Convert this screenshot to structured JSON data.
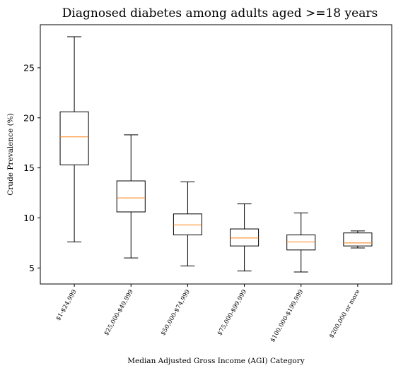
{
  "chart_data": {
    "type": "box",
    "title": "Diagnosed diabetes among adults aged >=18 years",
    "xlabel": "Median Adjusted Gross Income (AGI) Category",
    "ylabel": "Crude Prevalence (%)",
    "ylim": [
      3.4,
      29.3
    ],
    "yticks": [
      5,
      10,
      15,
      20,
      25
    ],
    "grid": false,
    "colors": {
      "box": "#000000",
      "median": "#ff7f0e"
    },
    "categories": [
      "$1-$24,999",
      "$25,000-$49,999",
      "$50,000-$74,999",
      "$75,000-$99,999",
      "$100,000-$199,999",
      "$200,000 or more"
    ],
    "boxes": [
      {
        "whisker_low": 7.6,
        "q1": 15.3,
        "median": 18.1,
        "q3": 20.6,
        "whisker_high": 28.1
      },
      {
        "whisker_low": 6.0,
        "q1": 10.6,
        "median": 12.0,
        "q3": 13.7,
        "whisker_high": 18.3
      },
      {
        "whisker_low": 5.2,
        "q1": 8.3,
        "median": 9.3,
        "q3": 10.4,
        "whisker_high": 13.6
      },
      {
        "whisker_low": 4.7,
        "q1": 7.2,
        "median": 8.0,
        "q3": 8.9,
        "whisker_high": 11.4
      },
      {
        "whisker_low": 4.6,
        "q1": 6.8,
        "median": 7.6,
        "q3": 8.3,
        "whisker_high": 10.5
      },
      {
        "whisker_low": 7.0,
        "q1": 7.2,
        "median": 7.5,
        "q3": 8.5,
        "whisker_high": 8.7
      }
    ]
  }
}
